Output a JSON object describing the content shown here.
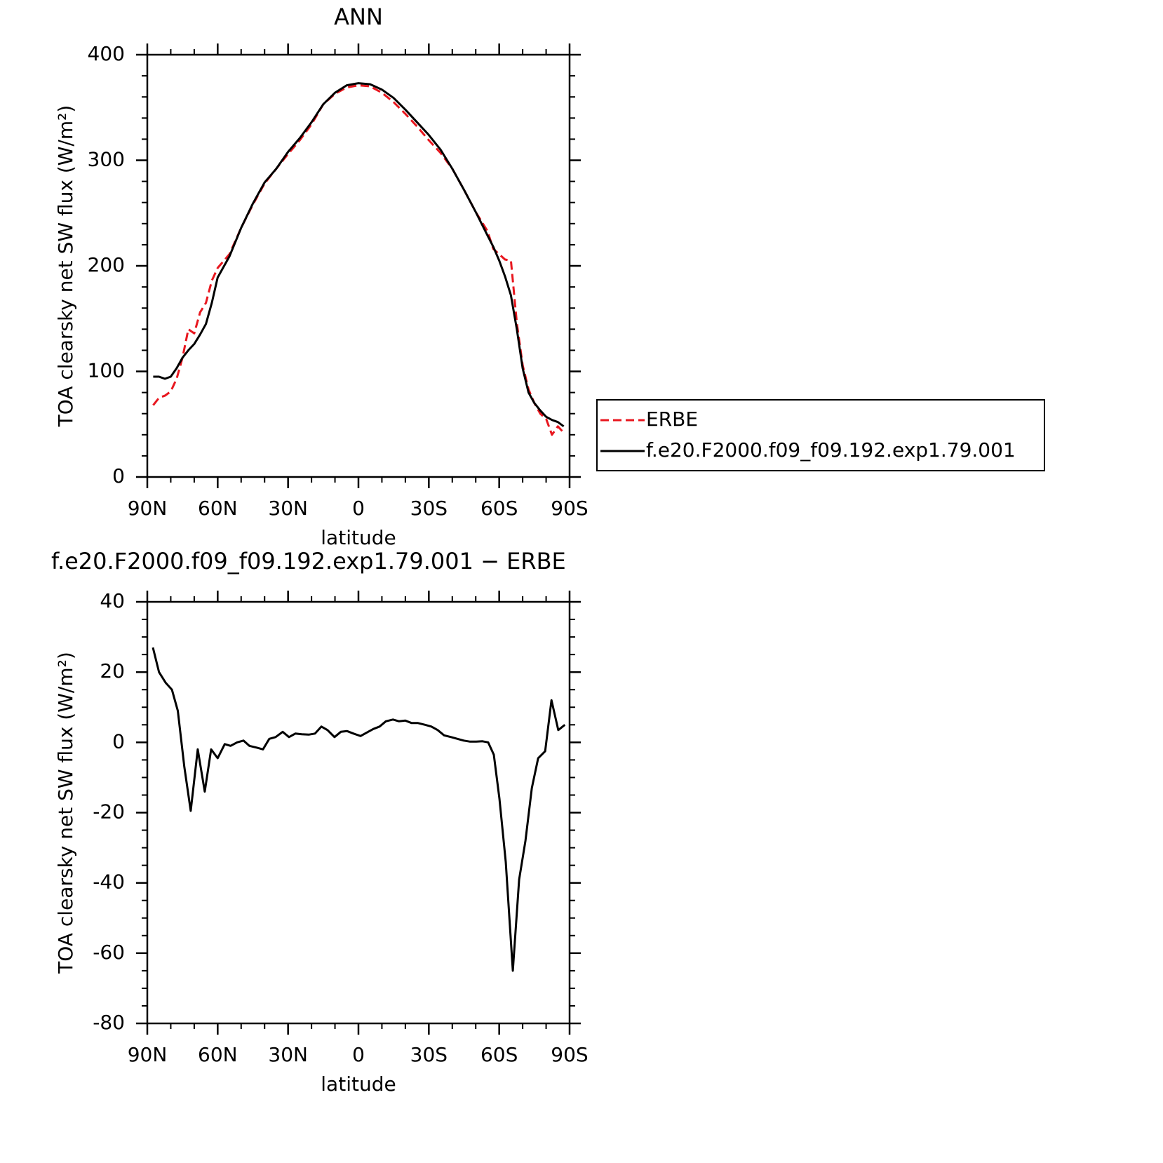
{
  "chart_data": [
    {
      "type": "line",
      "title": "ANN",
      "xlabel": "latitude",
      "ylabel": "TOA clearsky net SW flux (W/m²)",
      "x": [
        87.5,
        85,
        82.5,
        80,
        77.5,
        75,
        72.5,
        70,
        67.5,
        65,
        62.5,
        60,
        55,
        50,
        45,
        40,
        35,
        30,
        25,
        20,
        15,
        10,
        5,
        0,
        -5,
        -10,
        -15,
        -20,
        -25,
        -30,
        -35,
        -40,
        -45,
        -50,
        -55,
        -57.5,
        -60,
        -62.5,
        -65,
        -67.5,
        -70,
        -72.5,
        -75,
        -77.5,
        -80,
        -82.5,
        -85,
        -87.5
      ],
      "series": [
        {
          "name": "ERBE",
          "color": "#e8171f",
          "dashed": true,
          "values": [
            68,
            75,
            77,
            81,
            93,
            113,
            140,
            136,
            156,
            165,
            186,
            198,
            211,
            236,
            258,
            278,
            292,
            306,
            319,
            334,
            353,
            363,
            369,
            371,
            370,
            364,
            355,
            344,
            332,
            319,
            307,
            292,
            272,
            251,
            233,
            216,
            211,
            206,
            205,
            146,
            106,
            83,
            70,
            60,
            55,
            40,
            48,
            42
          ]
        },
        {
          "name": "f.e20.F2000.f09_f09.192.exp1.79.001",
          "color": "#000000",
          "dashed": false,
          "values": [
            95,
            95,
            93,
            95,
            103,
            113,
            120,
            126,
            135,
            145,
            165,
            189,
            209,
            236,
            259,
            279,
            292,
            308,
            321,
            336,
            353,
            364,
            371,
            373,
            372,
            367,
            359,
            348,
            336,
            324,
            310,
            292,
            272,
            251,
            229,
            218,
            205,
            190,
            172,
            140,
            103,
            80,
            70,
            63,
            57,
            54,
            52,
            48
          ]
        }
      ],
      "xlim": [
        90,
        -90
      ],
      "xticks": [
        {
          "value": 90,
          "label": "90N"
        },
        {
          "value": 60,
          "label": "60N"
        },
        {
          "value": 30,
          "label": "30N"
        },
        0,
        {
          "value": -30,
          "label": "30S"
        },
        {
          "value": -60,
          "label": "60S"
        },
        {
          "value": -90,
          "label": "90S"
        }
      ],
      "xminorticks": [
        80,
        70,
        50,
        40,
        20,
        10,
        -10,
        -20,
        -40,
        -50,
        -70,
        -80
      ],
      "ylim": [
        0,
        400
      ],
      "yticks": [
        0,
        100,
        200,
        300,
        400
      ],
      "yminorticks": [
        20,
        40,
        60,
        80,
        120,
        140,
        160,
        180,
        220,
        240,
        260,
        280,
        320,
        340,
        360,
        380
      ],
      "legend": "right"
    },
    {
      "type": "line",
      "title": "f.e20.F2000.f09_f09.192.exp1.79.001 − ERBE",
      "xlabel": "latitude",
      "ylabel": "TOA clearsky net SW flux (W/m²)",
      "x": [
        87.6,
        85,
        82.2,
        79.5,
        77,
        74.2,
        71.5,
        68.5,
        65.5,
        62.8,
        60,
        57,
        54.5,
        51.7,
        49,
        46.5,
        43.4,
        40.7,
        38,
        35.3,
        32.3,
        29.6,
        26.9,
        24.2,
        21.2,
        18.5,
        15.8,
        13.2,
        10.2,
        7.5,
        4.8,
        2.1,
        -0.9,
        -3.6,
        -6.3,
        -9,
        -11.7,
        -14.7,
        -17.3,
        -20,
        -22.7,
        -25.4,
        -28.4,
        -31.1,
        -33.8,
        -36.5,
        -39.5,
        -42.2,
        -44.9,
        -47.6,
        -50.2,
        -52.9,
        -55.3,
        -57.7,
        -60.1,
        -62.8,
        -65.8,
        -68.5,
        -71.2,
        -73.9,
        -76.6,
        -79.6,
        -82.3,
        -85.2,
        -88
      ],
      "values": [
        27,
        20,
        17,
        15,
        9,
        -7,
        -19.5,
        -2,
        -14,
        -2,
        -4.5,
        -0.5,
        -1,
        0,
        0.5,
        -1,
        -1.5,
        -2,
        1,
        1.5,
        3,
        1.5,
        2.5,
        2.3,
        2.2,
        2.5,
        4.5,
        3.5,
        1.5,
        3,
        3.2,
        2.5,
        1.8,
        2.8,
        3.8,
        4.5,
        6,
        6.5,
        6,
        6.2,
        5.5,
        5.5,
        5,
        4.5,
        3.5,
        2,
        1.5,
        1,
        0.5,
        0.2,
        0.2,
        0.3,
        0,
        -3.5,
        -16,
        -34,
        -65,
        -39,
        -28,
        -13,
        -4.5,
        -2.5,
        12,
        3.5,
        5
      ],
      "color": "#000000",
      "xlim": [
        90,
        -90
      ],
      "xticks": [
        {
          "value": 90,
          "label": "90N"
        },
        {
          "value": 60,
          "label": "60N"
        },
        {
          "value": 30,
          "label": "30N"
        },
        0,
        {
          "value": -30,
          "label": "30S"
        },
        {
          "value": -60,
          "label": "60S"
        },
        {
          "value": -90,
          "label": "90S"
        }
      ],
      "xminorticks": [
        80,
        70,
        50,
        40,
        20,
        10,
        -10,
        -20,
        -40,
        -50,
        -70,
        -80
      ],
      "ylim": [
        -80,
        40
      ],
      "yticks": [
        -80,
        -60,
        -40,
        -20,
        0,
        20,
        40
      ],
      "yminorticks": [
        -75,
        -70,
        -65,
        -55,
        -50,
        -45,
        -35,
        -30,
        -25,
        -15,
        -10,
        -5,
        5,
        10,
        15,
        25,
        30,
        35
      ]
    }
  ]
}
